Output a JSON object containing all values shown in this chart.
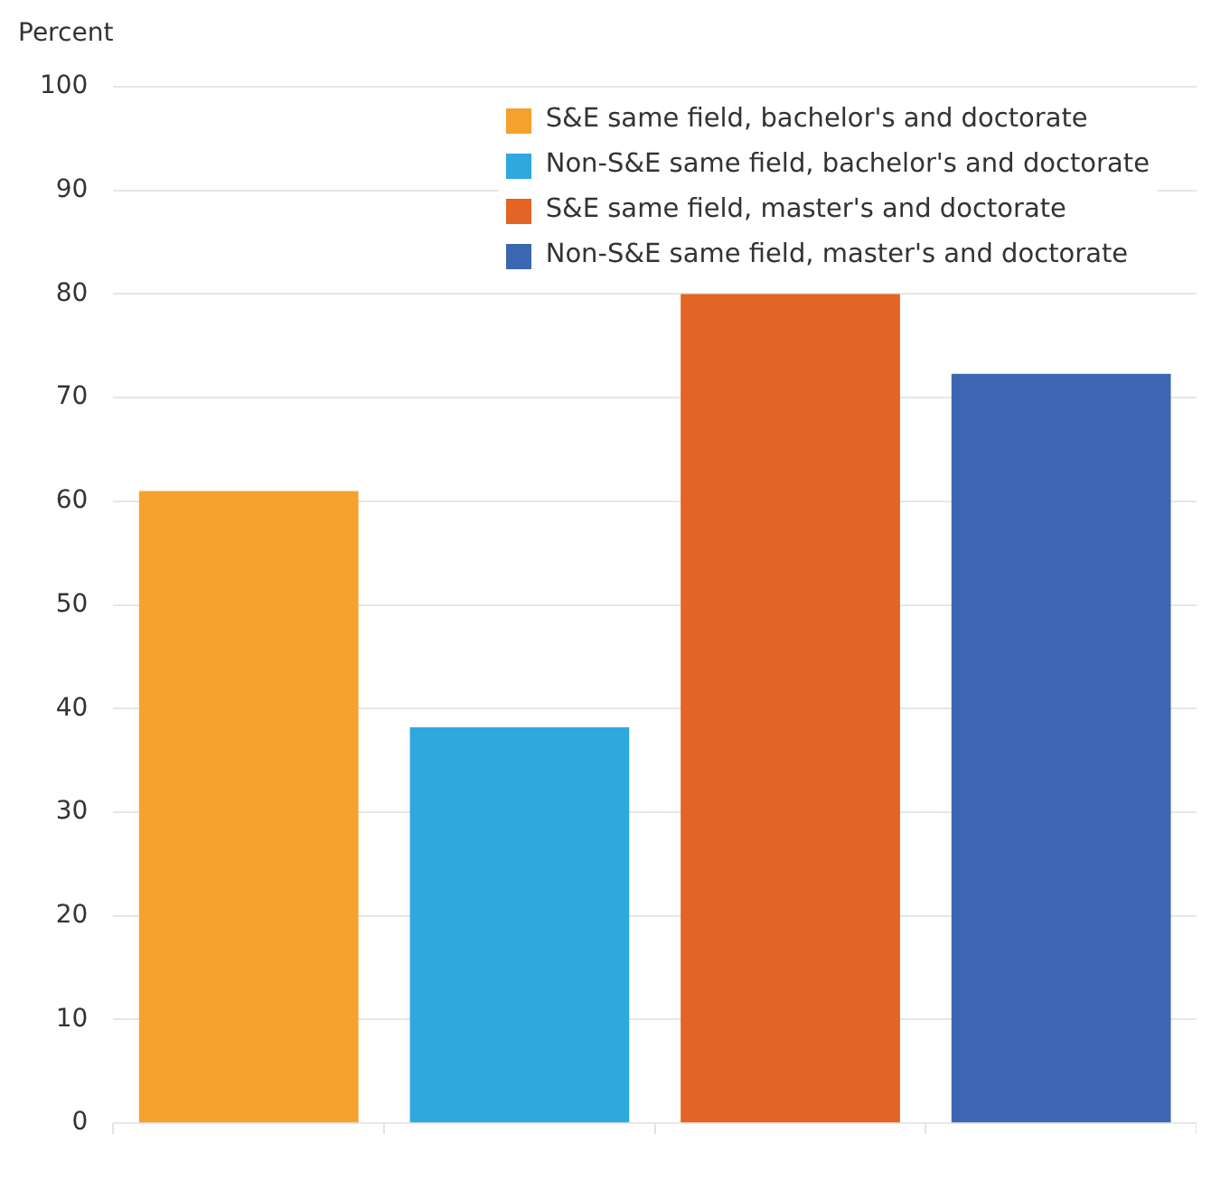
{
  "chart_data": {
    "type": "bar",
    "ylabel": "Percent",
    "categories": [
      null,
      null,
      null,
      null
    ],
    "series": [
      {
        "name": "S&E same field, bachelor's and doctorate",
        "color": "#f4a12d",
        "values": [
          61,
          null,
          null,
          null
        ]
      },
      {
        "name": "Non-S&E same field, bachelor's and doctorate",
        "color": "#2ea8df",
        "values": [
          null,
          38.2,
          null,
          null
        ]
      },
      {
        "name": "S&E same field, master's and doctorate",
        "color": "#e36424",
        "values": [
          null,
          null,
          80,
          null
        ]
      },
      {
        "name": "Non-S&E same field, master's and doctorate",
        "color": "#3c66b1",
        "values": [
          null,
          null,
          null,
          72.3
        ]
      }
    ],
    "ylim": [
      0,
      100
    ],
    "yticks": [
      0,
      10,
      20,
      30,
      40,
      50,
      60,
      70,
      80,
      90,
      100
    ],
    "grid": "y",
    "legend": "top right"
  }
}
